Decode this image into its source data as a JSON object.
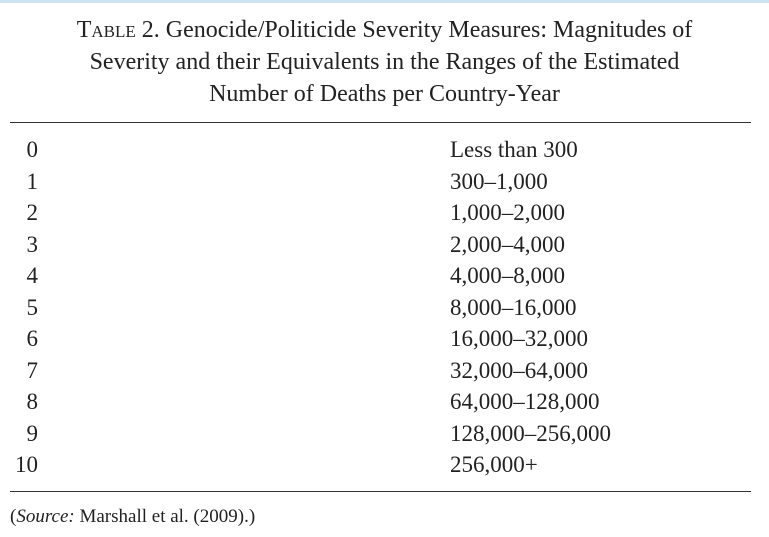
{
  "caption": {
    "label": "Table 2.",
    "line1": "Genocide/Politicide Severity Measures: Magnitudes of",
    "line2": "Severity and their Equivalents in the Ranges of the Estimated",
    "line3": "Number of Deaths per Country-Year"
  },
  "table": {
    "rows": [
      {
        "magnitude": "0",
        "range": "Less than 300"
      },
      {
        "magnitude": "1",
        "range": "300–1,000"
      },
      {
        "magnitude": "2",
        "range": "1,000–2,000"
      },
      {
        "magnitude": "3",
        "range": "2,000–4,000"
      },
      {
        "magnitude": "4",
        "range": "4,000–8,000"
      },
      {
        "magnitude": "5",
        "range": "8,000–16,000"
      },
      {
        "magnitude": "6",
        "range": "16,000–32,000"
      },
      {
        "magnitude": "7",
        "range": "32,000–64,000"
      },
      {
        "magnitude": "8",
        "range": "64,000–128,000"
      },
      {
        "magnitude": "9",
        "range": "128,000–256,000"
      },
      {
        "magnitude": "10",
        "range": "256,000+"
      }
    ]
  },
  "source": {
    "open": "(",
    "label": "Source:",
    "text": " Marshall et al. (2009).)"
  }
}
